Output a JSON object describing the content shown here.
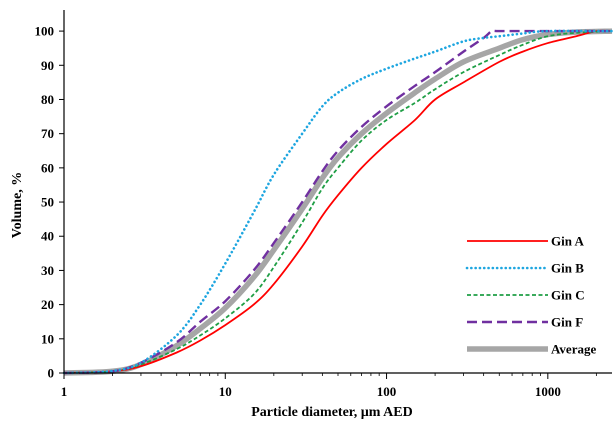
{
  "chart_data": {
    "type": "line",
    "xlabel": "Particle diameter, µm AED",
    "ylabel": "Volume, %",
    "x_scale": "log",
    "xlim": [
      1,
      2500
    ],
    "ylim": [
      0,
      105
    ],
    "x_ticks": [
      1,
      10,
      100,
      1000
    ],
    "x_tick_labels": [
      "1",
      "10",
      "100",
      "1000"
    ],
    "y_ticks": [
      0,
      10,
      20,
      30,
      40,
      50,
      60,
      70,
      80,
      90,
      100
    ],
    "y_tick_labels": [
      "0",
      "10",
      "20",
      "30",
      "40",
      "50",
      "60",
      "70",
      "80",
      "90",
      "100"
    ],
    "grid": false,
    "legend_position": "bottom-right",
    "series": [
      {
        "name": "Gin A",
        "color": "#ff0000",
        "style": "solid",
        "points": [
          [
            1,
            0
          ],
          [
            2,
            0.5
          ],
          [
            3,
            2
          ],
          [
            5,
            6
          ],
          [
            7,
            9.5
          ],
          [
            10,
            14
          ],
          [
            15,
            20
          ],
          [
            20,
            26
          ],
          [
            30,
            37
          ],
          [
            40,
            46
          ],
          [
            50,
            52
          ],
          [
            70,
            60
          ],
          [
            100,
            67
          ],
          [
            150,
            74
          ],
          [
            200,
            80
          ],
          [
            300,
            85
          ],
          [
            500,
            91
          ],
          [
            700,
            94
          ],
          [
            1000,
            96.5
          ],
          [
            1500,
            98.5
          ],
          [
            2000,
            100
          ],
          [
            2500,
            100
          ]
        ]
      },
      {
        "name": "Gin B",
        "color": "#1ea6e0",
        "style": "dotted",
        "points": [
          [
            1,
            0
          ],
          [
            2,
            0.6
          ],
          [
            3,
            3
          ],
          [
            5,
            11
          ],
          [
            7,
            20
          ],
          [
            10,
            32
          ],
          [
            15,
            47
          ],
          [
            20,
            58
          ],
          [
            30,
            70
          ],
          [
            40,
            78
          ],
          [
            50,
            82
          ],
          [
            70,
            86
          ],
          [
            100,
            89
          ],
          [
            150,
            92
          ],
          [
            200,
            94
          ],
          [
            300,
            97
          ],
          [
            400,
            98
          ],
          [
            500,
            98.5
          ],
          [
            700,
            99.3
          ],
          [
            1000,
            100
          ],
          [
            2500,
            100
          ]
        ]
      },
      {
        "name": "Gin C",
        "color": "#1f9e45",
        "style": "dashed",
        "points": [
          [
            1,
            0
          ],
          [
            2,
            0.5
          ],
          [
            3,
            2.5
          ],
          [
            5,
            7
          ],
          [
            7,
            11
          ],
          [
            10,
            16
          ],
          [
            15,
            23
          ],
          [
            20,
            31
          ],
          [
            30,
            44
          ],
          [
            40,
            54
          ],
          [
            50,
            60
          ],
          [
            70,
            68
          ],
          [
            100,
            74
          ],
          [
            150,
            79
          ],
          [
            200,
            83
          ],
          [
            300,
            88
          ],
          [
            500,
            93
          ],
          [
            700,
            96
          ],
          [
            1000,
            98.5
          ],
          [
            1500,
            99.5
          ],
          [
            2500,
            100
          ]
        ]
      },
      {
        "name": "Gin F",
        "color": "#7030a0",
        "style": "longdash",
        "points": [
          [
            1,
            0
          ],
          [
            2,
            0.5
          ],
          [
            3,
            3
          ],
          [
            5,
            9
          ],
          [
            7,
            15
          ],
          [
            10,
            21
          ],
          [
            15,
            30
          ],
          [
            20,
            38
          ],
          [
            30,
            50
          ],
          [
            40,
            59
          ],
          [
            50,
            65
          ],
          [
            70,
            72
          ],
          [
            100,
            78
          ],
          [
            150,
            84
          ],
          [
            200,
            88
          ],
          [
            300,
            94
          ],
          [
            400,
            98
          ],
          [
            450,
            100
          ],
          [
            500,
            100
          ],
          [
            1000,
            100
          ],
          [
            2500,
            100
          ]
        ]
      },
      {
        "name": "Average",
        "color": "#a6a6a6",
        "style": "thick",
        "points": [
          [
            1,
            0
          ],
          [
            2,
            0.5
          ],
          [
            3,
            2.5
          ],
          [
            5,
            8
          ],
          [
            7,
            13
          ],
          [
            10,
            19
          ],
          [
            15,
            28
          ],
          [
            20,
            36
          ],
          [
            30,
            48
          ],
          [
            40,
            57
          ],
          [
            50,
            63
          ],
          [
            70,
            70
          ],
          [
            100,
            76
          ],
          [
            150,
            82
          ],
          [
            200,
            86
          ],
          [
            300,
            91
          ],
          [
            500,
            95
          ],
          [
            700,
            97.5
          ],
          [
            1000,
            99
          ],
          [
            1500,
            99.7
          ],
          [
            2500,
            100
          ]
        ]
      }
    ]
  }
}
